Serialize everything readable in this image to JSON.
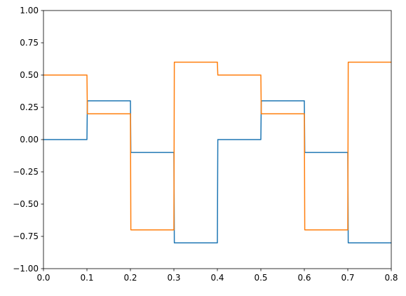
{
  "chart_data": {
    "type": "line",
    "title": "",
    "xlabel": "",
    "ylabel": "",
    "xlim": [
      0,
      0.8
    ],
    "ylim": [
      -1,
      1
    ],
    "grid": false,
    "legend": "none",
    "x_ticks": [
      0.0,
      0.1,
      0.2,
      0.3,
      0.4,
      0.5,
      0.6,
      0.7,
      0.8
    ],
    "x_tick_labels": [
      "0.0",
      "0.1",
      "0.2",
      "0.3",
      "0.4",
      "0.5",
      "0.6",
      "0.7",
      "0.8"
    ],
    "y_ticks": [
      -1.0,
      -0.75,
      -0.5,
      -0.25,
      0.0,
      0.25,
      0.5,
      0.75,
      1.0
    ],
    "y_tick_labels": [
      "−1.00",
      "−0.75",
      "−0.50",
      "−0.25",
      "0.00",
      "0.25",
      "0.50",
      "0.75",
      "1.00"
    ],
    "series": [
      {
        "color": "#1f77b4",
        "x": [
          0.0,
          0.1,
          0.101,
          0.2,
          0.201,
          0.3,
          0.301,
          0.4,
          0.401,
          0.5,
          0.501,
          0.6,
          0.601,
          0.7,
          0.701,
          0.8
        ],
        "y": [
          0.0,
          0.0,
          0.3,
          0.3,
          -0.1,
          -0.1,
          -0.8,
          -0.8,
          0.0,
          0.0,
          0.3,
          0.3,
          -0.1,
          -0.1,
          -0.8,
          -0.8
        ]
      },
      {
        "color": "#ff7f0e",
        "x": [
          0.0,
          0.1,
          0.101,
          0.2,
          0.201,
          0.3,
          0.301,
          0.4,
          0.401,
          0.5,
          0.501,
          0.6,
          0.601,
          0.7,
          0.701,
          0.8
        ],
        "y": [
          0.5,
          0.5,
          0.2,
          0.2,
          -0.7,
          -0.7,
          0.6,
          0.6,
          0.5,
          0.5,
          0.2,
          0.2,
          -0.7,
          -0.7,
          0.6,
          0.6
        ]
      }
    ]
  }
}
